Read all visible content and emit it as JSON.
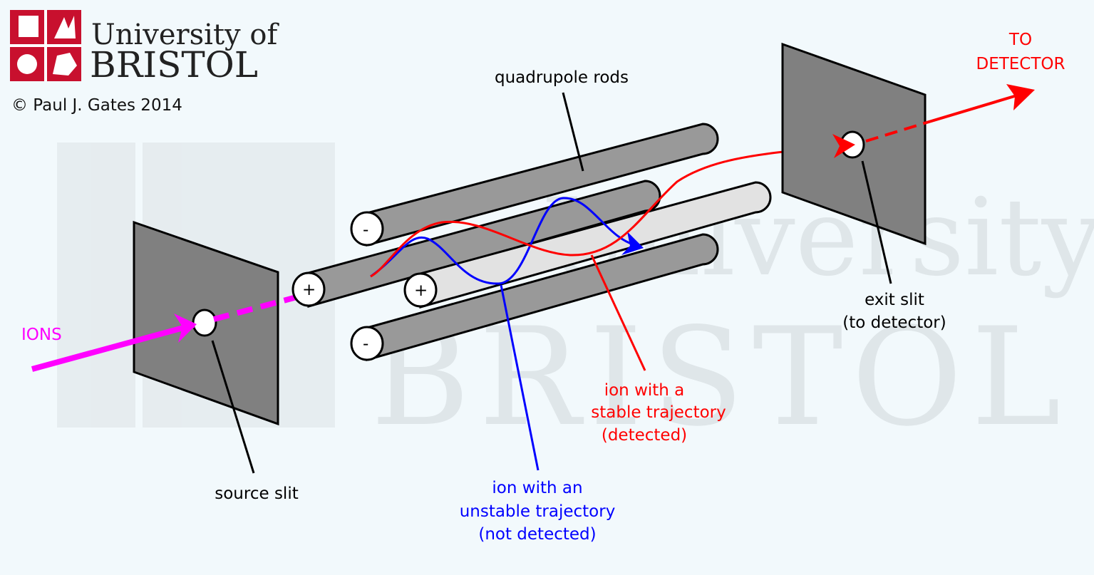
{
  "logo": {
    "line1": "University of",
    "line2": "BRISTOL",
    "copyright": "© Paul J. Gates 2014"
  },
  "watermark": {
    "line1": "University of",
    "line2": "BRISTOL"
  },
  "labels": {
    "rods": "quadrupole rods",
    "ions": "IONS",
    "to_detector_1": "TO",
    "to_detector_2": "DETECTOR",
    "source_slit": "source slit",
    "exit_slit_1": "exit slit",
    "exit_slit_2": "(to detector)",
    "stable_1": "ion with a",
    "stable_2": "stable trajectory",
    "stable_3": "(detected)",
    "unstable_1": "ion with an",
    "unstable_2": "unstable trajectory",
    "unstable_3": "(not detected)"
  },
  "signs": {
    "top": "-",
    "bottom": "-",
    "left": "+",
    "middle": "+"
  },
  "colors": {
    "ions": "#ff00ff",
    "stable": "#ff0000",
    "unstable": "#0000ff",
    "rod_dark": "#999999",
    "rod_light": "#e2e2e2",
    "plate": "#808080",
    "logo_red": "#c8102e"
  }
}
